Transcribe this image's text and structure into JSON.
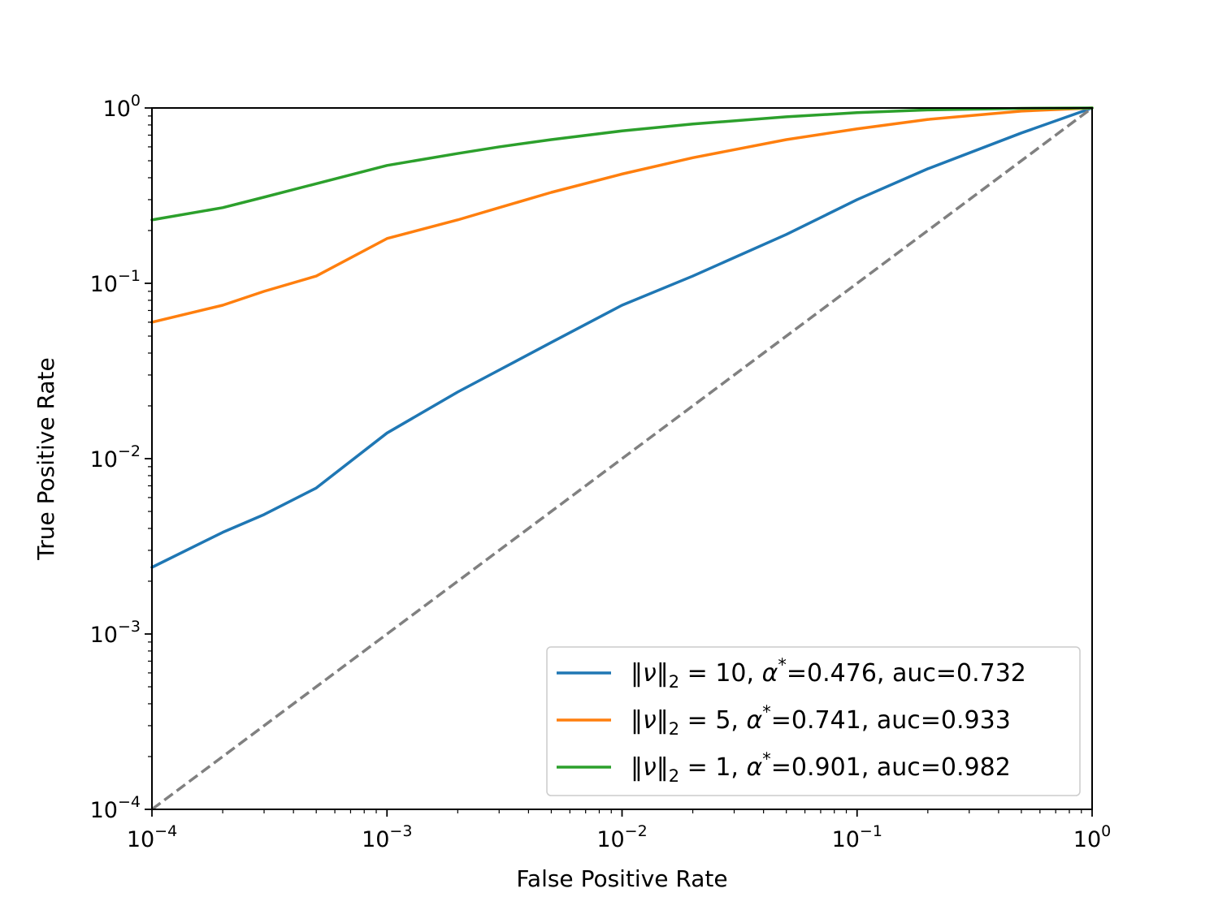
{
  "chart_data": {
    "type": "line",
    "xscale": "log",
    "yscale": "log",
    "xlabel": "False Positive Rate",
    "ylabel": "True Positive Rate",
    "xlim": [
      0.0001,
      1
    ],
    "ylim": [
      0.0001,
      1
    ],
    "x_ticks": [
      {
        "value": 0.0001,
        "base": "10",
        "exp": "−4"
      },
      {
        "value": 0.001,
        "base": "10",
        "exp": "−3"
      },
      {
        "value": 0.01,
        "base": "10",
        "exp": "−2"
      },
      {
        "value": 0.1,
        "base": "10",
        "exp": "−1"
      },
      {
        "value": 1,
        "base": "10",
        "exp": "0"
      }
    ],
    "y_ticks": [
      {
        "value": 0.0001,
        "base": "10",
        "exp": "−4"
      },
      {
        "value": 0.001,
        "base": "10",
        "exp": "−3"
      },
      {
        "value": 0.01,
        "base": "10",
        "exp": "−2"
      },
      {
        "value": 0.1,
        "base": "10",
        "exp": "−1"
      },
      {
        "value": 1,
        "base": "10",
        "exp": "0"
      }
    ],
    "legend_position": "lower-right",
    "series": [
      {
        "name": "‖ν‖₂ = 10, α*=0.476, auc=0.732",
        "legend": {
          "norm": "10",
          "alpha": "0.476",
          "auc": "0.732"
        },
        "color": "#1f77b4",
        "x": [
          0.0001,
          0.0002,
          0.0003,
          0.0005,
          0.001,
          0.002,
          0.003,
          0.005,
          0.01,
          0.02,
          0.05,
          0.1,
          0.2,
          0.5,
          1
        ],
        "y": [
          0.0024,
          0.0038,
          0.0048,
          0.0068,
          0.014,
          0.024,
          0.032,
          0.046,
          0.075,
          0.11,
          0.19,
          0.3,
          0.45,
          0.72,
          1.0
        ]
      },
      {
        "name": "‖ν‖₂ = 5, α*=0.741, auc=0.933",
        "legend": {
          "norm": "5",
          "alpha": "0.741",
          "auc": "0.933"
        },
        "color": "#ff7f0e",
        "x": [
          0.0001,
          0.0002,
          0.0003,
          0.0005,
          0.001,
          0.002,
          0.003,
          0.005,
          0.01,
          0.02,
          0.05,
          0.1,
          0.2,
          0.5,
          1
        ],
        "y": [
          0.06,
          0.075,
          0.09,
          0.11,
          0.18,
          0.23,
          0.27,
          0.33,
          0.42,
          0.52,
          0.66,
          0.76,
          0.86,
          0.96,
          1.0
        ]
      },
      {
        "name": "‖ν‖₂ = 1, α*=0.901, auc=0.982",
        "legend": {
          "norm": "1",
          "alpha": "0.901",
          "auc": "0.982"
        },
        "color": "#2ca02c",
        "x": [
          0.0001,
          0.0002,
          0.0003,
          0.0005,
          0.001,
          0.002,
          0.003,
          0.005,
          0.01,
          0.02,
          0.05,
          0.1,
          0.2,
          0.5,
          1
        ],
        "y": [
          0.23,
          0.27,
          0.31,
          0.37,
          0.47,
          0.55,
          0.6,
          0.66,
          0.74,
          0.81,
          0.89,
          0.94,
          0.975,
          0.995,
          1.0
        ]
      },
      {
        "name": "chance",
        "color": "#808080",
        "dashed": true,
        "x": [
          0.0001,
          1
        ],
        "y": [
          0.0001,
          1
        ]
      }
    ]
  }
}
